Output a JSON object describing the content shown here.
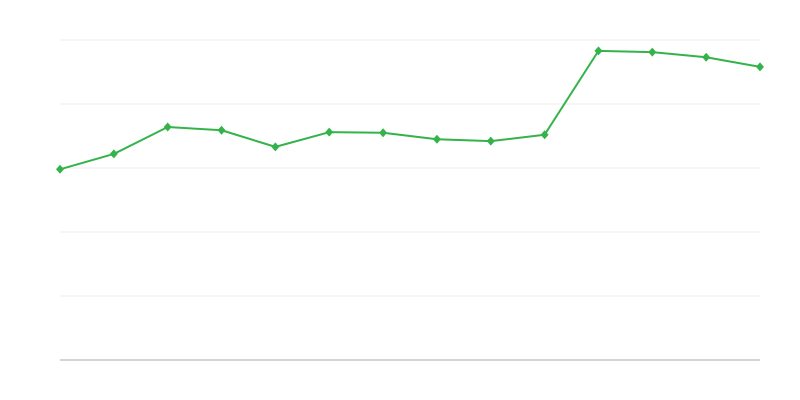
{
  "chart_data": {
    "type": "line",
    "title": "",
    "xlabel": "",
    "ylabel": "",
    "x": [
      0,
      1,
      2,
      3,
      4,
      5,
      6,
      7,
      8,
      9,
      10,
      11,
      12,
      13
    ],
    "series": [
      {
        "values": [
          2.98,
          3.22,
          3.64,
          3.59,
          3.33,
          3.56,
          3.55,
          3.45,
          3.42,
          3.52,
          4.83,
          4.81,
          4.73,
          4.58
        ],
        "color": "#34b34a"
      }
    ],
    "ylim": [
      0,
      5
    ],
    "yticks": [
      0,
      1,
      2,
      3,
      4,
      5
    ],
    "grid": true,
    "marker": "diamond",
    "gridline_color": "#ebebeb",
    "axis_color": "#aaaaaa"
  }
}
